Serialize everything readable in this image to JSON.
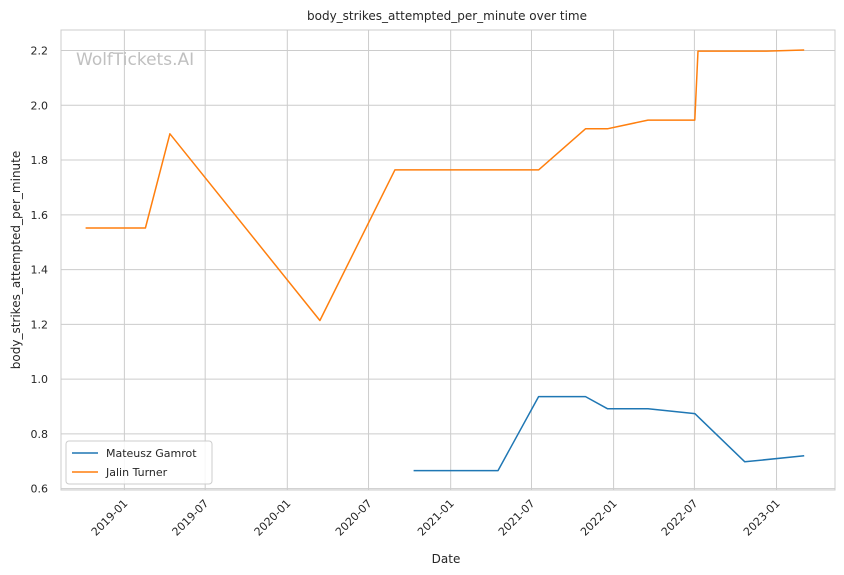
{
  "chart_data": {
    "type": "line",
    "title": "body_strikes_attempted_per_minute over time",
    "xlabel": "Date",
    "ylabel": "body_strikes_attempted_per_minute",
    "watermark": "WolfTickets.AI",
    "xlim": [
      "2018-08-12",
      "2023-05-12"
    ],
    "ylim": [
      0.595,
      2.275
    ],
    "x_ticks": [
      "2019-01",
      "2019-07",
      "2020-01",
      "2020-07",
      "2021-01",
      "2021-07",
      "2022-01",
      "2022-07",
      "2023-01"
    ],
    "y_ticks": [
      "0.6",
      "0.8",
      "1.0",
      "1.2",
      "1.4",
      "1.6",
      "1.8",
      "2.0",
      "2.2"
    ],
    "grid": true,
    "legend_position": "lower-left",
    "series": [
      {
        "name": "Mateusz Gamrot",
        "color": "#1f77b4",
        "x": [
          "2020-10-10",
          "2021-04-17",
          "2021-07-17",
          "2021-10-30",
          "2021-12-18",
          "2022-03-19",
          "2022-07-02",
          "2022-10-22",
          "2023-03-04"
        ],
        "y": [
          0.666,
          0.666,
          0.936,
          0.936,
          0.892,
          0.892,
          0.874,
          0.698,
          0.72
        ]
      },
      {
        "name": "Jalin Turner",
        "color": "#ff7f0e",
        "x": [
          "2018-10-06",
          "2019-02-17",
          "2019-04-13",
          "2020-03-14",
          "2020-08-29",
          "2021-07-17",
          "2021-10-30",
          "2021-12-18",
          "2022-03-19",
          "2022-07-02",
          "2022-07-09",
          "2022-12-10",
          "2023-03-04"
        ],
        "y": [
          1.552,
          1.552,
          1.896,
          1.214,
          1.764,
          1.764,
          1.914,
          1.914,
          1.946,
          1.946,
          2.198,
          2.198,
          2.202
        ]
      }
    ]
  }
}
